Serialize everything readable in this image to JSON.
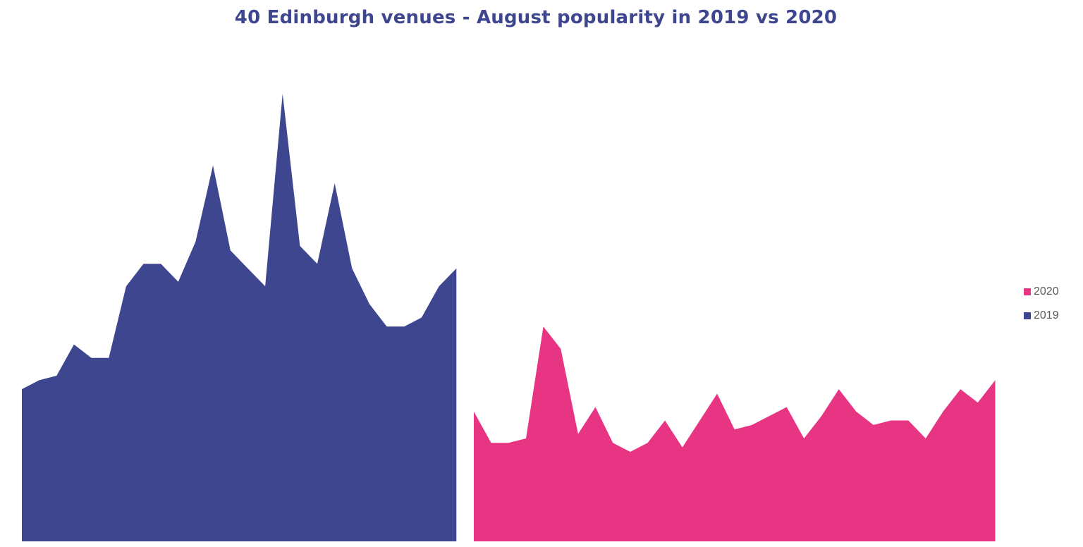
{
  "chart_data": {
    "type": "area",
    "title": "40 Edinburgh venues - August popularity in 2019 vs 2020",
    "xlabel": "",
    "ylabel": "",
    "ylim": [
      0,
      100
    ],
    "grid": false,
    "legend_position": "right",
    "series": [
      {
        "name": "2019",
        "color": "#3e468f",
        "values": [
          34,
          36,
          37,
          44,
          41,
          41,
          57,
          62,
          62,
          58,
          67,
          84,
          65,
          61,
          57,
          100,
          66,
          62,
          80,
          61,
          53,
          48,
          48,
          50,
          57,
          61
        ]
      },
      {
        "name": "2020",
        "color": "#e83583",
        "values": [
          29,
          22,
          22,
          23,
          48,
          43,
          24,
          30,
          22,
          20,
          22,
          27,
          21,
          27,
          33,
          25,
          26,
          28,
          30,
          23,
          28,
          34,
          29,
          26,
          27,
          27,
          23,
          29,
          34,
          31,
          36
        ]
      }
    ]
  },
  "legend": [
    {
      "label": "2020",
      "color": "#e83583"
    },
    {
      "label": "2019",
      "color": "#3e468f"
    }
  ]
}
